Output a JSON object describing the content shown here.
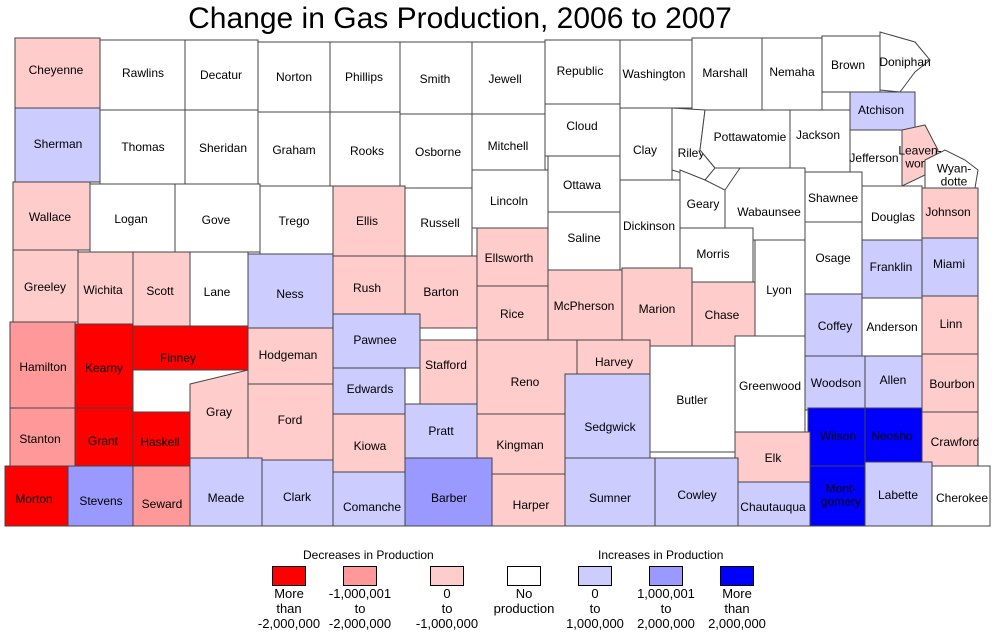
{
  "title": "Change in Gas Production, 2006 to 2007",
  "colors": {
    "dec_large": "#ff0000",
    "dec_mid": "#ff9999",
    "dec_small": "#ffcccc",
    "none": "#ffffff",
    "inc_small": "#ccccff",
    "inc_mid": "#9999ff",
    "inc_large": "#0000ff"
  },
  "legend": {
    "decreases_title": "Decreases in Production",
    "increases_title": "Increases in Production",
    "items": [
      {
        "key": "dec_large",
        "label": "More\nthan\n-2,000,000"
      },
      {
        "key": "dec_mid",
        "label": "-1,000,001\nto\n-2,000,000"
      },
      {
        "key": "dec_small",
        "label": "0\nto\n-1,000,000"
      },
      {
        "key": "none",
        "label": "No\nproduction"
      },
      {
        "key": "inc_small",
        "label": "0\nto\n1,000,000"
      },
      {
        "key": "inc_mid",
        "label": "1,000,001\nto\n2,000,000"
      },
      {
        "key": "inc_large",
        "label": "More\nthan\n2,000,000"
      }
    ]
  },
  "counties": [
    {
      "name": "Cheyenne",
      "cls": "dec_small"
    },
    {
      "name": "Rawlins",
      "cls": "none"
    },
    {
      "name": "Decatur",
      "cls": "none"
    },
    {
      "name": "Norton",
      "cls": "none"
    },
    {
      "name": "Phillips",
      "cls": "none"
    },
    {
      "name": "Smith",
      "cls": "none"
    },
    {
      "name": "Jewell",
      "cls": "none"
    },
    {
      "name": "Republic",
      "cls": "none"
    },
    {
      "name": "Washington",
      "cls": "none"
    },
    {
      "name": "Marshall",
      "cls": "none"
    },
    {
      "name": "Nemaha",
      "cls": "none"
    },
    {
      "name": "Brown",
      "cls": "none"
    },
    {
      "name": "Doniphan",
      "cls": "none"
    },
    {
      "name": "Sherman",
      "cls": "inc_small"
    },
    {
      "name": "Thomas",
      "cls": "none"
    },
    {
      "name": "Sheridan",
      "cls": "none"
    },
    {
      "name": "Graham",
      "cls": "none"
    },
    {
      "name": "Rooks",
      "cls": "none"
    },
    {
      "name": "Osborne",
      "cls": "none"
    },
    {
      "name": "Mitchell",
      "cls": "none"
    },
    {
      "name": "Cloud",
      "cls": "none"
    },
    {
      "name": "Clay",
      "cls": "none"
    },
    {
      "name": "Riley",
      "cls": "none"
    },
    {
      "name": "Pottawatomie",
      "cls": "none"
    },
    {
      "name": "Jackson",
      "cls": "none"
    },
    {
      "name": "Atchison",
      "cls": "inc_small"
    },
    {
      "name": "Jefferson",
      "cls": "none"
    },
    {
      "name": "Leaven-\nworth",
      "cls": "dec_small"
    },
    {
      "name": "Wyan-\ndotte",
      "cls": "none"
    },
    {
      "name": "Wallace",
      "cls": "dec_small"
    },
    {
      "name": "Logan",
      "cls": "none"
    },
    {
      "name": "Gove",
      "cls": "none"
    },
    {
      "name": "Trego",
      "cls": "none"
    },
    {
      "name": "Ellis",
      "cls": "dec_small"
    },
    {
      "name": "Russell",
      "cls": "none"
    },
    {
      "name": "Lincoln",
      "cls": "none"
    },
    {
      "name": "Ottawa",
      "cls": "none"
    },
    {
      "name": "Dickinson",
      "cls": "none"
    },
    {
      "name": "Geary",
      "cls": "none"
    },
    {
      "name": "Wabaunsee",
      "cls": "none"
    },
    {
      "name": "Shawnee",
      "cls": "none"
    },
    {
      "name": "Douglas",
      "cls": "none"
    },
    {
      "name": "Johnson",
      "cls": "dec_small"
    },
    {
      "name": "Greeley",
      "cls": "dec_small"
    },
    {
      "name": "Wichita",
      "cls": "dec_small"
    },
    {
      "name": "Scott",
      "cls": "dec_small"
    },
    {
      "name": "Lane",
      "cls": "none"
    },
    {
      "name": "Ness",
      "cls": "inc_small"
    },
    {
      "name": "Rush",
      "cls": "dec_small"
    },
    {
      "name": "Barton",
      "cls": "dec_small"
    },
    {
      "name": "Ellsworth",
      "cls": "dec_small"
    },
    {
      "name": "Saline",
      "cls": "none"
    },
    {
      "name": "Morris",
      "cls": "none"
    },
    {
      "name": "Osage",
      "cls": "none"
    },
    {
      "name": "Franklin",
      "cls": "inc_small"
    },
    {
      "name": "Miami",
      "cls": "inc_small"
    },
    {
      "name": "Rice",
      "cls": "dec_small"
    },
    {
      "name": "McPherson",
      "cls": "dec_small"
    },
    {
      "name": "Marion",
      "cls": "dec_small"
    },
    {
      "name": "Chase",
      "cls": "dec_small"
    },
    {
      "name": "Lyon",
      "cls": "none"
    },
    {
      "name": "Coffey",
      "cls": "inc_small"
    },
    {
      "name": "Anderson",
      "cls": "none"
    },
    {
      "name": "Linn",
      "cls": "dec_small"
    },
    {
      "name": "Hamilton",
      "cls": "dec_mid"
    },
    {
      "name": "Kearny",
      "cls": "dec_large"
    },
    {
      "name": "Finney",
      "cls": "dec_large"
    },
    {
      "name": "Hodgeman",
      "cls": "dec_small"
    },
    {
      "name": "Pawnee",
      "cls": "inc_small"
    },
    {
      "name": "Stafford",
      "cls": "dec_small"
    },
    {
      "name": "Reno",
      "cls": "dec_small"
    },
    {
      "name": "Harvey",
      "cls": "dec_small"
    },
    {
      "name": "Butler",
      "cls": "none"
    },
    {
      "name": "Greenwood",
      "cls": "none"
    },
    {
      "name": "Woodson",
      "cls": "inc_small"
    },
    {
      "name": "Allen",
      "cls": "inc_small"
    },
    {
      "name": "Bourbon",
      "cls": "dec_small"
    },
    {
      "name": "Edwards",
      "cls": "inc_small"
    },
    {
      "name": "Gray",
      "cls": "dec_small"
    },
    {
      "name": "Ford",
      "cls": "dec_small"
    },
    {
      "name": "Stanton",
      "cls": "dec_mid"
    },
    {
      "name": "Grant",
      "cls": "dec_large"
    },
    {
      "name": "Haskell",
      "cls": "dec_large"
    },
    {
      "name": "Kiowa",
      "cls": "dec_small"
    },
    {
      "name": "Pratt",
      "cls": "inc_small"
    },
    {
      "name": "Kingman",
      "cls": "dec_small"
    },
    {
      "name": "Sedgwick",
      "cls": "inc_small"
    },
    {
      "name": "Wilson",
      "cls": "inc_large"
    },
    {
      "name": "Neosho",
      "cls": "inc_large"
    },
    {
      "name": "Crawford",
      "cls": "dec_small"
    },
    {
      "name": "Elk",
      "cls": "dec_small"
    },
    {
      "name": "Morton",
      "cls": "dec_large"
    },
    {
      "name": "Stevens",
      "cls": "inc_mid"
    },
    {
      "name": "Seward",
      "cls": "dec_mid"
    },
    {
      "name": "Meade",
      "cls": "inc_small"
    },
    {
      "name": "Clark",
      "cls": "inc_small"
    },
    {
      "name": "Comanche",
      "cls": "inc_small"
    },
    {
      "name": "Barber",
      "cls": "inc_mid"
    },
    {
      "name": "Harper",
      "cls": "dec_small"
    },
    {
      "name": "Sumner",
      "cls": "inc_small"
    },
    {
      "name": "Cowley",
      "cls": "inc_small"
    },
    {
      "name": "Chautauqua",
      "cls": "inc_small"
    },
    {
      "name": "Mont-\ngomery",
      "cls": "inc_large"
    },
    {
      "name": "Labette",
      "cls": "inc_small"
    },
    {
      "name": "Cherokee",
      "cls": "none"
    }
  ]
}
